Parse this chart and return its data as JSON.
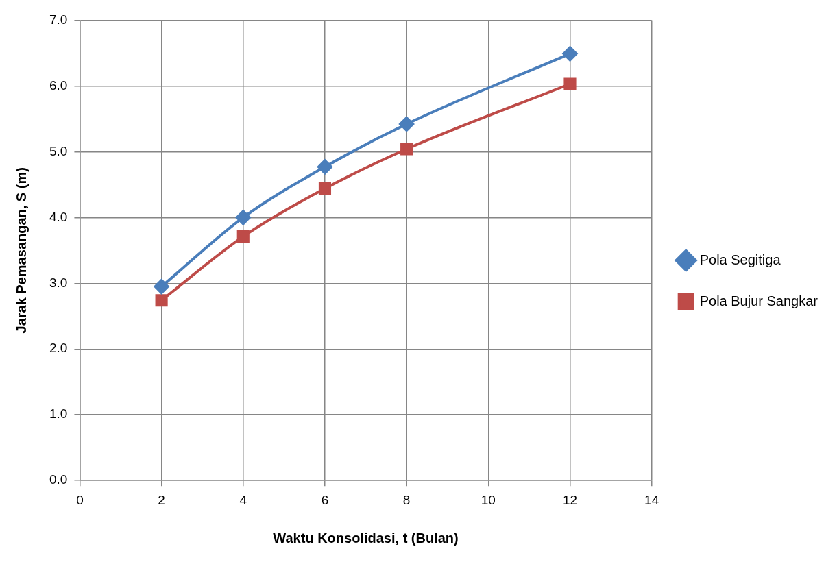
{
  "chart_data": {
    "type": "line",
    "xlabel": "Waktu Konsolidasi, t (Bulan)",
    "ylabel": "Jarak Pemasangan, S (m)",
    "x": [
      2,
      4,
      6,
      8,
      12
    ],
    "series": [
      {
        "name": "Pola Segitiga",
        "color": "#4a7ebb",
        "marker": "diamond",
        "values": [
          2.95,
          4.0,
          4.77,
          5.42,
          6.49
        ]
      },
      {
        "name": "Pola Bujur Sangkar",
        "color": "#be4b48",
        "marker": "square",
        "values": [
          2.74,
          3.71,
          4.44,
          5.04,
          6.03
        ]
      }
    ],
    "xlim": [
      0,
      14
    ],
    "xticks": [
      0,
      2,
      4,
      6,
      8,
      10,
      12,
      14
    ],
    "ylim": [
      0,
      7
    ],
    "yticks": [
      {
        "value": 0,
        "label": "0.0"
      },
      {
        "value": 1,
        "label": "1.0"
      },
      {
        "value": 2,
        "label": "2.0"
      },
      {
        "value": 3,
        "label": "3.0"
      },
      {
        "value": 4,
        "label": "4.0"
      },
      {
        "value": 5,
        "label": "5.0"
      },
      {
        "value": 6,
        "label": "6.0"
      },
      {
        "value": 7,
        "label": "7.0"
      }
    ],
    "grid": true,
    "legend": "right",
    "line_style": "solid"
  }
}
